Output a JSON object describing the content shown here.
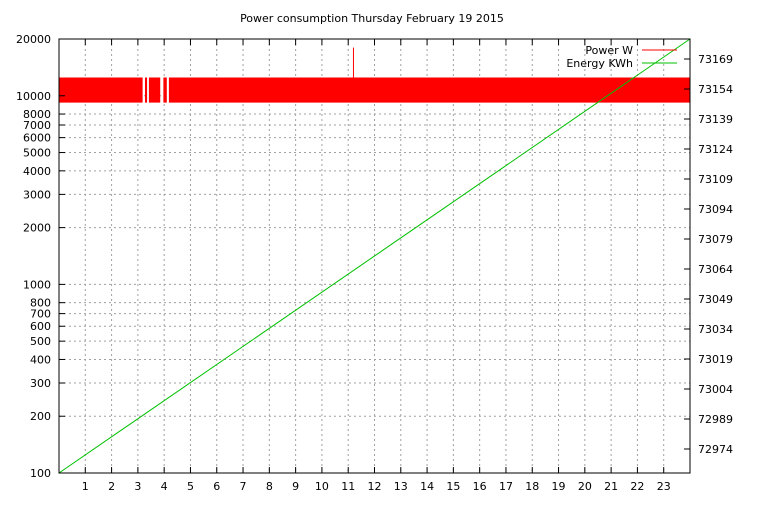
{
  "chart_data": {
    "type": "line",
    "title": "Power consumption Thursday February 19 2015",
    "xlabel": "",
    "ylabel": "",
    "x_ticks": [
      "1",
      "2",
      "3",
      "4",
      "5",
      "6",
      "7",
      "8",
      "9",
      "10",
      "11",
      "12",
      "13",
      "14",
      "15",
      "16",
      "17",
      "18",
      "19",
      "20",
      "21",
      "22",
      "23"
    ],
    "xlim": [
      0,
      24
    ],
    "y_left": {
      "scale": "log",
      "ylim": [
        100,
        20000
      ],
      "ticks": [
        100,
        200,
        300,
        400,
        500,
        600,
        700,
        800,
        1000,
        2000,
        3000,
        4000,
        5000,
        6000,
        7000,
        8000,
        10000,
        20000
      ],
      "tick_labels": [
        "100",
        "200",
        "300",
        "400",
        "500",
        "600",
        "700",
        "800",
        "1000",
        "2000",
        "3000",
        "4000",
        "5000",
        "6000",
        "7000",
        "8000",
        "10000",
        "20000"
      ]
    },
    "y_right": {
      "scale": "linear",
      "ylim": [
        72962,
        73179
      ],
      "ticks": [
        72974,
        72989,
        73004,
        73019,
        73034,
        73049,
        73064,
        73079,
        73094,
        73109,
        73124,
        73139,
        73154,
        73169
      ],
      "tick_labels": [
        "72974",
        "72989",
        "73004",
        "73019",
        "73034",
        "73049",
        "73064",
        "73079",
        "73094",
        "73109",
        "73124",
        "73139",
        "73154",
        "73169"
      ]
    },
    "grid": true,
    "legend_position": "top-right",
    "series": [
      {
        "name": "Power W",
        "color": "#ff0000",
        "axis": "left",
        "band_low": 9200,
        "band_high": 12500,
        "gaps": [
          [
            3.18,
            3.27
          ],
          [
            3.35,
            3.42
          ],
          [
            3.85,
            3.97
          ],
          [
            4.1,
            4.18
          ]
        ],
        "spike": {
          "x": 11.2,
          "y": 18000
        }
      },
      {
        "name": "Energy KWh",
        "color": "#00c000",
        "axis": "right",
        "x": [
          0,
          24
        ],
        "y": [
          72962,
          73179
        ]
      }
    ]
  }
}
